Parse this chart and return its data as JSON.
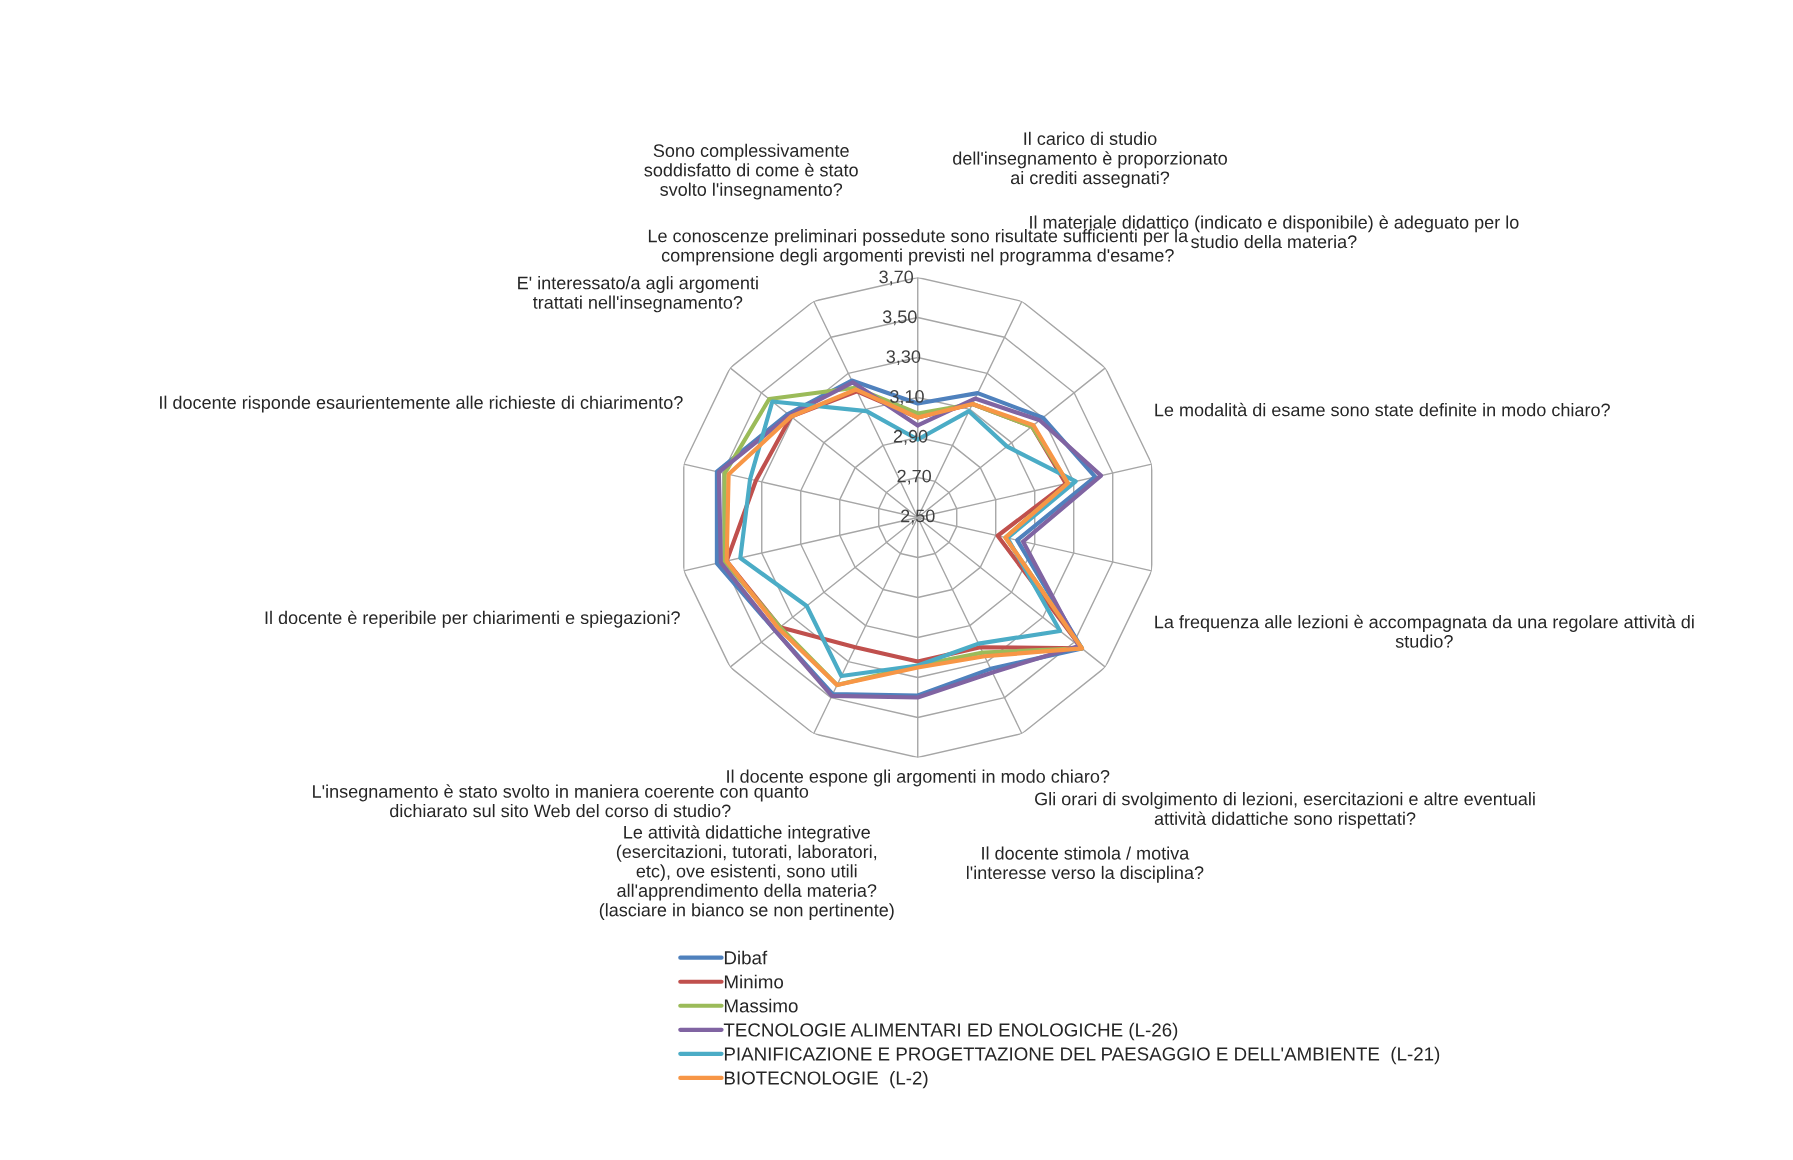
{
  "chart_data": {
    "type": "radar",
    "categories": [
      "Le conoscenze preliminari possedute sono risultate sufficienti per la\ncomprensione degli argomenti previsti nel programma d'esame?",
      "Il carico di studio\ndell'insegnamento è proporzionato\nai crediti assegnati?",
      "Il materiale didattico (indicato e disponibile) è adeguato per lo\nstudio della materia?",
      "Le modalità di esame sono state definite in modo chiaro?",
      "La frequenza alle lezioni è accompagnata da una regolare attività di\nstudio?",
      "Gli orari di svolgimento di lezioni, esercitazioni e altre eventuali\nattività didattiche sono rispettati?",
      "Il docente stimola / motiva\nl'interesse verso la disciplina?",
      "Il docente espone gli argomenti in modo chiaro?",
      "Le attività didattiche integrative\n(esercitazioni, tutorati, laboratori,\netc), ove esistenti, sono utili\nall'apprendimento della materia?\n(lasciare in bianco se non pertinente)",
      "L'insegnamento è stato svolto in maniera coerente con quanto\ndichiarato sul sito Web del corso di studio?",
      "Il docente è reperibile per chiarimenti e spiegazioni?",
      "Il docente risponde esaurientemente alle richieste di chiarimento?",
      "E' interessato/a agli argomenti\ntrattati nell'insegnamento?",
      "Sono complessivamente\nsoddisfatto di come è stato\nsvolto l'insegnamento?"
    ],
    "series": [
      {
        "name": "Dibaf",
        "color": "#4f81bd",
        "values": [
          3.07,
          3.19,
          3.3,
          3.41,
          3.01,
          3.55,
          3.34,
          3.39,
          3.48,
          3.41,
          3.53,
          3.53,
          3.33,
          3.26
        ]
      },
      {
        "name": "Minimo",
        "color": "#c0504d",
        "values": [
          3.0,
          3.13,
          3.23,
          3.26,
          2.91,
          3.55,
          3.22,
          3.22,
          3.22,
          3.38,
          3.48,
          3.33,
          3.31,
          3.2
        ]
      },
      {
        "name": "Massimo",
        "color": "#9bbb59",
        "values": [
          3.02,
          3.13,
          3.23,
          3.27,
          2.95,
          3.55,
          3.25,
          3.24,
          3.43,
          3.38,
          3.49,
          3.49,
          3.45,
          3.22
        ]
      },
      {
        "name": "TECNOLOGIE ALIMENTARI ED ENOLOGICHE (L-26)",
        "color": "#8064a2",
        "values": [
          2.96,
          3.16,
          3.28,
          3.44,
          3.04,
          3.53,
          3.36,
          3.4,
          3.49,
          3.41,
          3.51,
          3.52,
          3.32,
          3.25
        ]
      },
      {
        "name": "PIANIFICAZIONE E PROGETTAZIONE DEL PAESAGGIO E DELL'AMBIENTE  (L-21)",
        "color": "#4bacc6",
        "values": [
          2.89,
          3.09,
          3.07,
          3.31,
          2.96,
          3.41,
          3.2,
          3.24,
          3.38,
          3.21,
          3.41,
          3.36,
          3.43,
          3.09
        ]
      },
      {
        "name": "BIOTECNOLOGIE  (L-2)",
        "color": "#f79646",
        "values": [
          3.0,
          3.13,
          3.24,
          3.27,
          2.95,
          3.55,
          3.27,
          3.25,
          3.43,
          3.39,
          3.48,
          3.47,
          3.31,
          3.21
        ]
      }
    ],
    "ylim": [
      2.5,
      3.7
    ],
    "yticks": [
      {
        "value": 2.5,
        "label": "2,50"
      },
      {
        "value": 2.7,
        "label": "2,70"
      },
      {
        "value": 2.9,
        "label": "2,90"
      },
      {
        "value": 3.1,
        "label": "3,10"
      },
      {
        "value": 3.3,
        "label": "3,30"
      },
      {
        "value": 3.5,
        "label": "3,50"
      },
      {
        "value": 3.7,
        "label": "3,70"
      }
    ],
    "grid": true,
    "legend": "bottom",
    "marker": "none",
    "line_style": "solid"
  }
}
